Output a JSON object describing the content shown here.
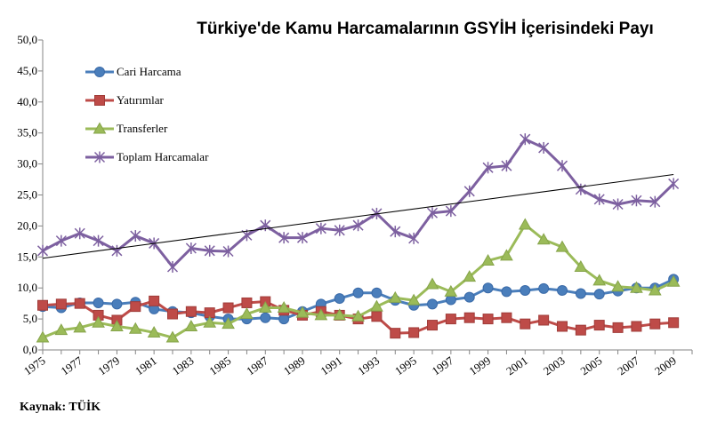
{
  "chart_data": {
    "type": "line",
    "title": "Türkiye'de Kamu Harcamalarının GSYİH İçerisindeki Payı",
    "source": "Kaynak: TÜİK",
    "ylim": [
      0,
      50
    ],
    "yticks": [
      0,
      5,
      10,
      15,
      20,
      25,
      30,
      35,
      40,
      45,
      50
    ],
    "ytick_labels": [
      "0,0",
      "5,0",
      "10,0",
      "15,0",
      "20,0",
      "25,0",
      "30,0",
      "35,0",
      "40,0",
      "45,0",
      "50,0"
    ],
    "xlim": [
      1975,
      2010
    ],
    "xtick_labels": [
      "1975",
      "1977",
      "1979",
      "1981",
      "1983",
      "1985",
      "1987",
      "1989",
      "1991",
      "1993",
      "1995",
      "1997",
      "1999",
      "2001",
      "2003",
      "2005",
      "2007",
      "2009"
    ],
    "x": [
      1975,
      1976,
      1977,
      1978,
      1979,
      1980,
      1981,
      1982,
      1983,
      1984,
      1985,
      1986,
      1987,
      1988,
      1989,
      1990,
      1991,
      1992,
      1993,
      1994,
      1995,
      1996,
      1997,
      1998,
      1999,
      2000,
      2001,
      2002,
      2003,
      2004,
      2005,
      2006,
      2007,
      2008,
      2009
    ],
    "grid": false,
    "legend_position": "top-left",
    "series": [
      {
        "name": "Cari Harcama",
        "color": "#4a7ebb",
        "marker": "circle",
        "values": [
          7.0,
          6.8,
          7.6,
          7.6,
          7.4,
          7.7,
          6.6,
          6.2,
          6.0,
          5.4,
          5.0,
          5.0,
          5.2,
          5.0,
          6.2,
          7.4,
          8.3,
          9.2,
          9.2,
          8.0,
          7.2,
          7.4,
          8.1,
          8.5,
          10.0,
          9.4,
          9.6,
          9.9,
          9.6,
          9.1,
          9.0,
          9.5,
          10.0,
          10.0,
          11.4
        ]
      },
      {
        "name": "Yatırımlar",
        "color": "#be4b48",
        "marker": "square",
        "values": [
          7.2,
          7.4,
          7.5,
          5.6,
          4.8,
          7.0,
          7.9,
          5.8,
          6.2,
          6.0,
          6.8,
          7.6,
          7.8,
          6.4,
          5.6,
          6.2,
          5.6,
          5.0,
          5.4,
          2.7,
          2.8,
          4.0,
          5.0,
          5.2,
          5.0,
          5.2,
          4.2,
          4.8,
          3.8,
          3.2,
          4.0,
          3.6,
          3.8,
          4.2,
          4.4
        ]
      },
      {
        "name": "Transferler",
        "color": "#9bbb59",
        "marker": "triangle",
        "values": [
          2.0,
          3.2,
          3.6,
          4.4,
          3.8,
          3.4,
          2.8,
          2.0,
          3.8,
          4.4,
          4.2,
          5.8,
          6.8,
          6.8,
          6.0,
          5.6,
          5.6,
          5.4,
          7.0,
          8.4,
          8.0,
          10.6,
          9.4,
          11.8,
          14.4,
          15.2,
          20.2,
          17.8,
          16.6,
          13.4,
          11.2,
          10.2,
          10.0,
          9.6,
          11.0
        ]
      },
      {
        "name": "Toplam Harcamalar",
        "color": "#7d60a0",
        "marker": "star",
        "values": [
          16.0,
          17.6,
          18.8,
          17.6,
          16.0,
          18.4,
          17.2,
          13.4,
          16.4,
          16.0,
          15.9,
          18.5,
          20.1,
          18.1,
          18.1,
          19.6,
          19.3,
          20.1,
          22.0,
          19.1,
          18.0,
          22.1,
          22.4,
          25.6,
          29.4,
          29.7,
          34.0,
          32.6,
          29.7,
          25.9,
          24.3,
          23.5,
          24.1,
          23.9,
          26.8
        ]
      },
      {
        "name": "",
        "color": "#000000",
        "marker": "none",
        "trend": true,
        "x_range": [
          1975,
          2009
        ],
        "values_range": [
          14.8,
          28.3
        ]
      }
    ]
  }
}
